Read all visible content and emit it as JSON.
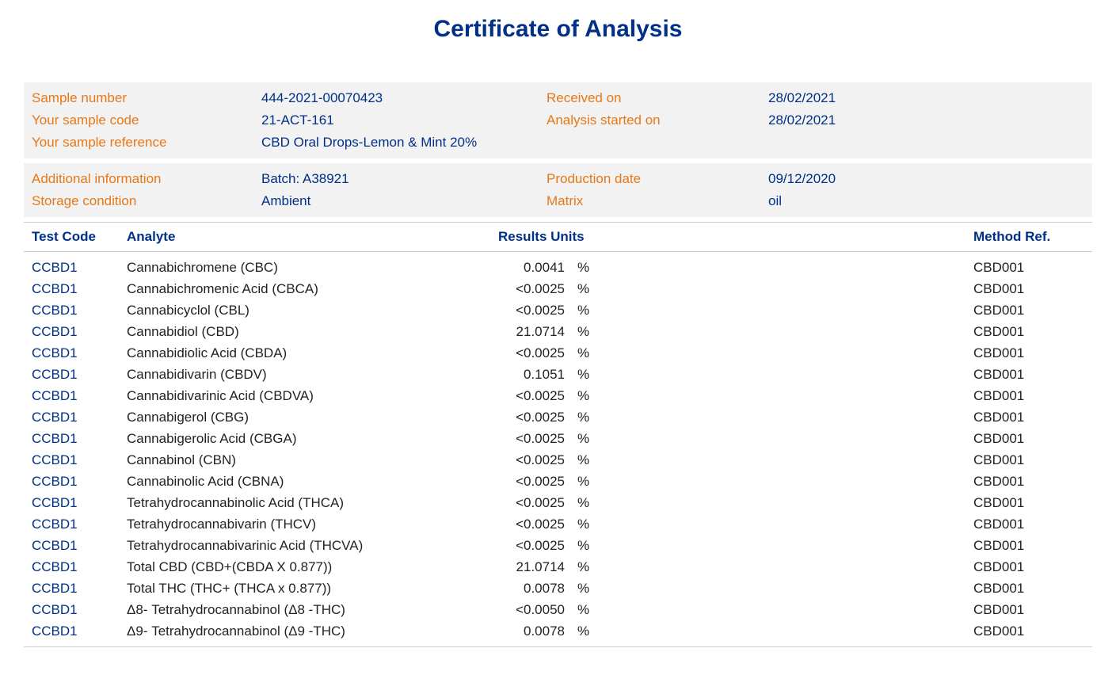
{
  "title": "Certificate of Analysis",
  "colors": {
    "heading": "#003087",
    "label": "#e67817",
    "value": "#003087",
    "row_bg": "#f2f2f2",
    "border": "#cccccc",
    "body_text": "#222222",
    "background": "#ffffff"
  },
  "fonts": {
    "family": "Arial, Helvetica, sans-serif",
    "title_size_pt": 22,
    "body_size_pt": 13
  },
  "info_block_1": {
    "rows": [
      {
        "label1": "Sample number",
        "value1": "444-2021-00070423",
        "label2": "Received on",
        "value2": "28/02/2021"
      },
      {
        "label1": "Your sample code",
        "value1": "21-ACT-161",
        "label2": "Analysis started on",
        "value2": "28/02/2021"
      },
      {
        "label1": "Your sample reference",
        "value1": "CBD Oral Drops-Lemon & Mint 20%",
        "label2": "",
        "value2": ""
      }
    ]
  },
  "info_block_2": {
    "rows": [
      {
        "label1": "Additional information",
        "value1": "Batch: A38921",
        "label2": "Production date",
        "value2": "09/12/2020"
      },
      {
        "label1": "Storage condition",
        "value1": "Ambient",
        "label2": "Matrix",
        "value2": "oil"
      }
    ]
  },
  "table": {
    "headers": {
      "test_code": "Test Code",
      "analyte": "Analyte",
      "results_units": "Results Units",
      "method_ref": "Method Ref."
    },
    "rows": [
      {
        "code": "CCBD1",
        "analyte": "Cannabichromene (CBC)",
        "result": "0.0041",
        "units": "%",
        "method": "CBD001"
      },
      {
        "code": "CCBD1",
        "analyte": "Cannabichromenic Acid (CBCA)",
        "result": "<0.0025",
        "units": "%",
        "method": "CBD001"
      },
      {
        "code": "CCBD1",
        "analyte": "Cannabicyclol (CBL)",
        "result": "<0.0025",
        "units": "%",
        "method": "CBD001"
      },
      {
        "code": "CCBD1",
        "analyte": "Cannabidiol (CBD)",
        "result": "21.0714",
        "units": "%",
        "method": "CBD001"
      },
      {
        "code": "CCBD1",
        "analyte": "Cannabidiolic Acid (CBDA)",
        "result": "<0.0025",
        "units": "%",
        "method": "CBD001"
      },
      {
        "code": "CCBD1",
        "analyte": "Cannabidivarin (CBDV)",
        "result": "0.1051",
        "units": "%",
        "method": "CBD001"
      },
      {
        "code": "CCBD1",
        "analyte": "Cannabidivarinic Acid (CBDVA)",
        "result": "<0.0025",
        "units": "%",
        "method": "CBD001"
      },
      {
        "code": "CCBD1",
        "analyte": "Cannabigerol (CBG)",
        "result": "<0.0025",
        "units": "%",
        "method": "CBD001"
      },
      {
        "code": "CCBD1",
        "analyte": "Cannabigerolic Acid (CBGA)",
        "result": "<0.0025",
        "units": "%",
        "method": "CBD001"
      },
      {
        "code": "CCBD1",
        "analyte": "Cannabinol (CBN)",
        "result": "<0.0025",
        "units": "%",
        "method": "CBD001"
      },
      {
        "code": "CCBD1",
        "analyte": "Cannabinolic Acid (CBNA)",
        "result": "<0.0025",
        "units": "%",
        "method": "CBD001"
      },
      {
        "code": "CCBD1",
        "analyte": "Tetrahydrocannabinolic Acid (THCA)",
        "result": "<0.0025",
        "units": "%",
        "method": "CBD001"
      },
      {
        "code": "CCBD1",
        "analyte": "Tetrahydrocannabivarin (THCV)",
        "result": "<0.0025",
        "units": "%",
        "method": "CBD001"
      },
      {
        "code": "CCBD1",
        "analyte": "Tetrahydrocannabivarinic Acid (THCVA)",
        "result": "<0.0025",
        "units": "%",
        "method": "CBD001"
      },
      {
        "code": "CCBD1",
        "analyte": "Total CBD (CBD+(CBDA X 0.877))",
        "result": "21.0714",
        "units": "%",
        "method": "CBD001"
      },
      {
        "code": "CCBD1",
        "analyte": "Total THC (THC+ (THCA x 0.877))",
        "result": "0.0078",
        "units": "%",
        "method": "CBD001"
      },
      {
        "code": "CCBD1",
        "analyte": "Δ8- Tetrahydrocannabinol (Δ8 -THC)",
        "result": "<0.0050",
        "units": "%",
        "method": "CBD001"
      },
      {
        "code": "CCBD1",
        "analyte": "Δ9- Tetrahydrocannabinol (Δ9 -THC)",
        "result": "0.0078",
        "units": "%",
        "method": "CBD001"
      }
    ]
  }
}
